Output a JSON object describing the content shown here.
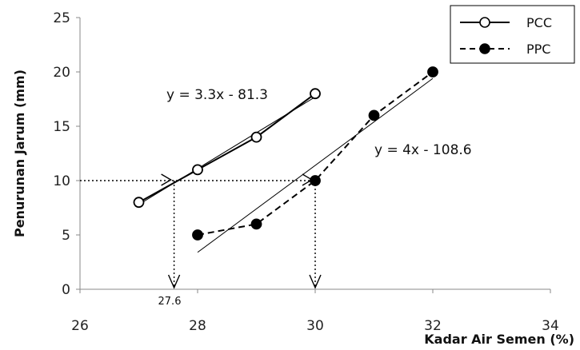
{
  "chart_data": {
    "type": "line",
    "xlabel": "Kadar Air Semen (%)",
    "ylabel": "Penurunan Jarum (mm)",
    "xlim": [
      26,
      34
    ],
    "ylim": [
      0,
      25
    ],
    "x_ticks": [
      "26",
      "28",
      "30",
      "32",
      "34"
    ],
    "y_ticks": [
      "0",
      "5",
      "10",
      "15",
      "20",
      "25"
    ],
    "grid": false,
    "legend_position": "top-right",
    "series": [
      {
        "name": "PCC",
        "x": [
          27,
          28,
          29,
          30
        ],
        "y": [
          8,
          11,
          14,
          18
        ],
        "line_style": "solid",
        "marker": "open-circle",
        "color": "#000000"
      },
      {
        "name": "PPC",
        "x": [
          28,
          29,
          30,
          31,
          32
        ],
        "y": [
          5,
          6,
          10,
          16,
          20
        ],
        "line_style": "dashed",
        "marker": "filled-circle",
        "color": "#000000"
      }
    ],
    "trendlines": [
      {
        "series": "PCC",
        "equation": "y = 3.3x - 81.3",
        "slope": 3.3,
        "intercept": -81.3,
        "x_range": [
          27,
          30
        ]
      },
      {
        "series": "PPC",
        "equation": "y = 4x - 108.6",
        "slope": 4,
        "intercept": -108.6,
        "x_range": [
          28,
          32
        ]
      }
    ],
    "reference_y": 10,
    "markers": [
      {
        "x": 27.6,
        "label": "27.6"
      },
      {
        "x": 30,
        "label": ""
      }
    ]
  }
}
